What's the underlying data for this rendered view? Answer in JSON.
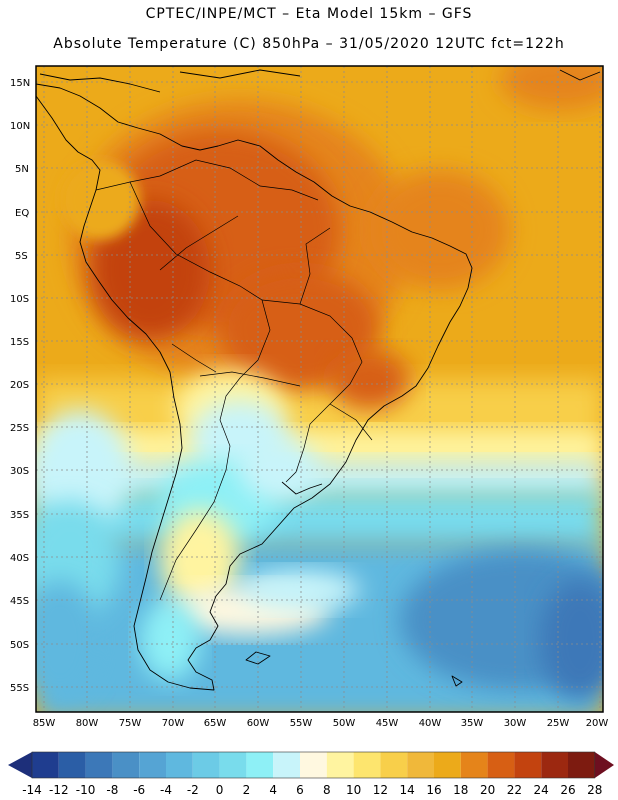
{
  "header": {
    "line1": "CPTEC/INPE/MCT –  Eta Model 15km – GFS",
    "line2": "Absolute Temperature (C) 850hPa – 31/05/2020 12UTC fct=122h"
  },
  "map": {
    "latitude_labels": [
      "15N",
      "10N",
      "5N",
      "EQ",
      "5S",
      "10S",
      "15S",
      "20S",
      "25S",
      "30S",
      "35S",
      "40S",
      "45S",
      "50S",
      "55S"
    ],
    "longitude_labels": [
      "85W",
      "80W",
      "75W",
      "70W",
      "65W",
      "60W",
      "55W",
      "50W",
      "45W",
      "40W",
      "35W",
      "30W",
      "25W",
      "20W"
    ]
  },
  "colorbar": {
    "labels": [
      "-14",
      "-12",
      "-10",
      "-8",
      "-6",
      "-4",
      "-2",
      "0",
      "2",
      "4",
      "6",
      "8",
      "10",
      "12",
      "14",
      "16",
      "18",
      "20",
      "22",
      "24",
      "26",
      "28"
    ],
    "colors": [
      "#1f3d8f",
      "#2b5ea6",
      "#3c78b8",
      "#4a90c6",
      "#55a4d4",
      "#5fb8df",
      "#6ccbe6",
      "#79dcec",
      "#8ef0f6",
      "#c8f4fa",
      "#fff8e0",
      "#fff4a0",
      "#fde56e",
      "#f8cf4a",
      "#f0b83a",
      "#ecaa1a",
      "#e5841a",
      "#d75f14",
      "#c3430f",
      "#9c2810",
      "#7d1b10"
    ],
    "left_arrow_color": "#1d2f7a",
    "right_arrow_color": "#6e0f20"
  }
}
